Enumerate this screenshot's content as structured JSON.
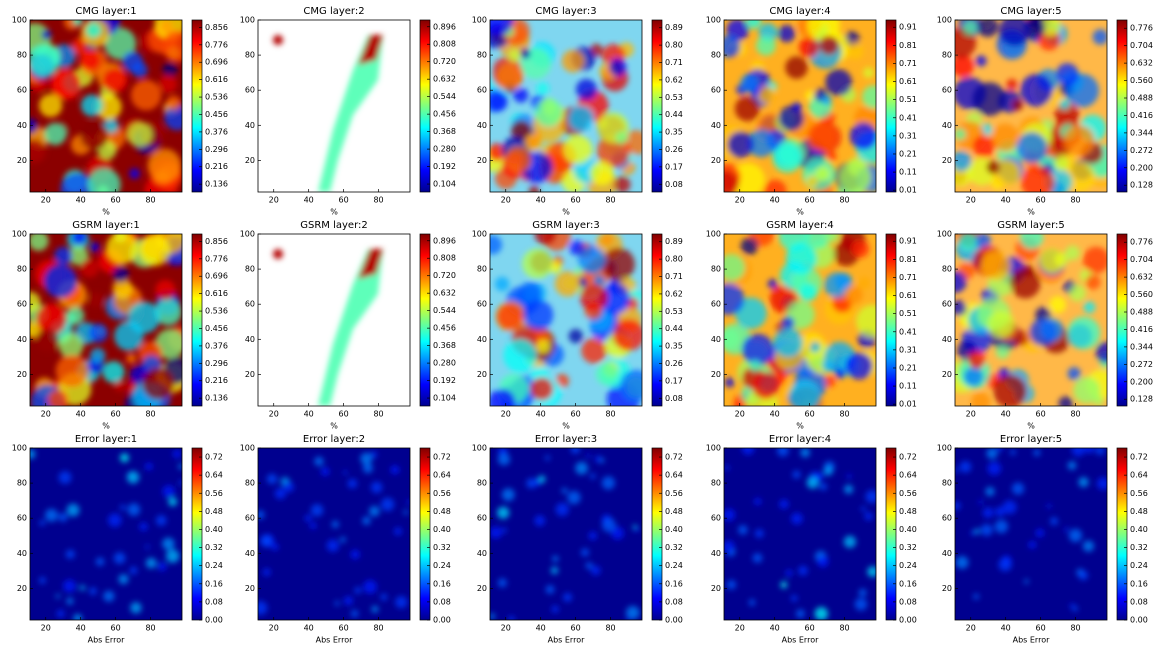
{
  "chart_data": [
    {
      "type": "heatmap",
      "title": "CMG layer:1",
      "xlabel": "%",
      "colormap": "jet",
      "background": "#8b0000",
      "xlim": [
        11,
        98
      ],
      "ylim": [
        2,
        100
      ],
      "xticks": [
        20,
        40,
        60,
        80
      ],
      "yticks": [
        20,
        40,
        60,
        80,
        100
      ],
      "clim": [
        0.1,
        0.89
      ],
      "cticks": [
        0.136,
        0.216,
        0.296,
        0.376,
        0.456,
        0.536,
        0.616,
        0.696,
        0.776,
        0.856
      ]
    },
    {
      "type": "heatmap",
      "title": "CMG layer:2",
      "xlabel": "%",
      "colormap": "jet",
      "background": "#ffffff",
      "xlim": [
        11,
        98
      ],
      "ylim": [
        2,
        100
      ],
      "xticks": [
        20,
        40,
        60,
        80
      ],
      "yticks": [
        20,
        40,
        60,
        80,
        100
      ],
      "clim": [
        0.064,
        0.93
      ],
      "cticks": [
        0.104,
        0.192,
        {
          "value": 0.28,
          "label": "0.280"
        },
        0.368,
        0.456,
        0.544,
        0.632,
        {
          "value": 0.72,
          "label": "0.720"
        },
        0.808,
        0.896
      ]
    },
    {
      "type": "heatmap",
      "title": "CMG layer:3",
      "xlabel": "%",
      "colormap": "jet",
      "background": "#7fd6f0",
      "xlim": [
        11,
        98
      ],
      "ylim": [
        2,
        100
      ],
      "xticks": [
        20,
        40,
        60,
        80
      ],
      "yticks": [
        20,
        40,
        60,
        80,
        100
      ],
      "clim": [
        0.04,
        0.93
      ],
      "cticks": [
        0.08,
        0.17,
        0.26,
        0.35,
        0.44,
        0.53,
        0.62,
        0.71,
        {
          "value": 0.8,
          "label": "0.80"
        },
        0.89
      ]
    },
    {
      "type": "heatmap",
      "title": "CMG layer:4",
      "xlabel": "%",
      "colormap": "jet",
      "background": "#ffb020",
      "xlim": [
        11,
        98
      ],
      "ylim": [
        2,
        100
      ],
      "xticks": [
        20,
        40,
        60,
        80
      ],
      "yticks": [
        20,
        40,
        60,
        80,
        100
      ],
      "clim": [
        0,
        0.95
      ],
      "cticks": [
        0.01,
        0.11,
        0.21,
        0.31,
        0.41,
        0.51,
        0.61,
        0.71,
        0.81,
        0.91
      ]
    },
    {
      "type": "heatmap",
      "title": "CMG layer:5",
      "xlabel": "%",
      "colormap": "jet",
      "background": "#ffb848",
      "xlim": [
        11,
        98
      ],
      "ylim": [
        2,
        100
      ],
      "xticks": [
        20,
        40,
        60,
        80
      ],
      "yticks": [
        20,
        40,
        60,
        80,
        100
      ],
      "clim": [
        0.1,
        0.81
      ],
      "cticks": [
        0.128,
        {
          "value": 0.2,
          "label": "0.200"
        },
        0.272,
        0.344,
        0.416,
        0.488,
        {
          "value": 0.56,
          "label": "0.560"
        },
        0.632,
        0.704,
        0.776
      ]
    },
    {
      "type": "heatmap",
      "title": "GSRM layer:1",
      "xlabel": "%",
      "colormap": "jet",
      "background": "#8b0000",
      "xlim": [
        11,
        98
      ],
      "ylim": [
        2,
        100
      ],
      "xticks": [
        20,
        40,
        60,
        80
      ],
      "yticks": [
        20,
        40,
        60,
        80,
        100
      ],
      "clim": [
        0.1,
        0.89
      ],
      "cticks": [
        0.136,
        0.216,
        0.296,
        0.376,
        0.456,
        0.536,
        0.616,
        0.696,
        0.776,
        0.856
      ]
    },
    {
      "type": "heatmap",
      "title": "GSRM layer:2",
      "xlabel": "%",
      "colormap": "jet",
      "background": "#ffffff",
      "xlim": [
        11,
        98
      ],
      "ylim": [
        2,
        100
      ],
      "xticks": [
        20,
        40,
        60,
        80
      ],
      "yticks": [
        20,
        40,
        60,
        80,
        100
      ],
      "clim": [
        0.064,
        0.93
      ],
      "cticks": [
        0.104,
        0.192,
        {
          "value": 0.28,
          "label": "0.280"
        },
        0.368,
        0.456,
        0.544,
        0.632,
        {
          "value": 0.72,
          "label": "0.720"
        },
        0.808,
        0.896
      ]
    },
    {
      "type": "heatmap",
      "title": "GSRM layer:3",
      "xlabel": "%",
      "colormap": "jet",
      "background": "#7fd6f0",
      "xlim": [
        11,
        98
      ],
      "ylim": [
        2,
        100
      ],
      "xticks": [
        20,
        40,
        60,
        80
      ],
      "yticks": [
        20,
        40,
        60,
        80,
        100
      ],
      "clim": [
        0.04,
        0.93
      ],
      "cticks": [
        0.08,
        0.17,
        0.26,
        0.35,
        0.44,
        0.53,
        0.62,
        0.71,
        {
          "value": 0.8,
          "label": "0.80"
        },
        0.89
      ]
    },
    {
      "type": "heatmap",
      "title": "GSRM layer:4",
      "xlabel": "%",
      "colormap": "jet",
      "background": "#ffb020",
      "xlim": [
        11,
        98
      ],
      "ylim": [
        2,
        100
      ],
      "xticks": [
        20,
        40,
        60,
        80
      ],
      "yticks": [
        20,
        40,
        60,
        80,
        100
      ],
      "clim": [
        0,
        0.95
      ],
      "cticks": [
        0.01,
        0.11,
        0.21,
        0.31,
        0.41,
        0.51,
        0.61,
        0.71,
        0.81,
        0.91
      ]
    },
    {
      "type": "heatmap",
      "title": "GSRM layer:5",
      "xlabel": "%",
      "colormap": "jet",
      "background": "#ffb848",
      "xlim": [
        11,
        98
      ],
      "ylim": [
        2,
        100
      ],
      "xticks": [
        20,
        40,
        60,
        80
      ],
      "yticks": [
        20,
        40,
        60,
        80,
        100
      ],
      "clim": [
        0.1,
        0.81
      ],
      "cticks": [
        0.128,
        {
          "value": 0.2,
          "label": "0.200"
        },
        0.272,
        0.344,
        0.416,
        0.488,
        {
          "value": 0.56,
          "label": "0.560"
        },
        0.632,
        0.704,
        0.776
      ]
    },
    {
      "type": "heatmap",
      "title": "Error layer:1",
      "xlabel": "Abs Error",
      "colormap": "jet",
      "background": "#00008f",
      "xlim": [
        11,
        98
      ],
      "ylim": [
        2,
        100
      ],
      "xticks": [
        20,
        40,
        60,
        80
      ],
      "yticks": [
        20,
        40,
        60,
        80,
        100
      ],
      "clim": [
        0,
        0.76
      ],
      "cticks": [
        {
          "value": 0,
          "label": "0.00"
        },
        0.08,
        0.16,
        0.24,
        0.32,
        {
          "value": 0.4,
          "label": "0.40"
        },
        0.48,
        0.56,
        0.64,
        0.72
      ]
    },
    {
      "type": "heatmap",
      "title": "Error layer:2",
      "xlabel": "Abs Error",
      "colormap": "jet",
      "background": "#00008f",
      "xlim": [
        11,
        98
      ],
      "ylim": [
        2,
        100
      ],
      "xticks": [
        20,
        40,
        60,
        80
      ],
      "yticks": [
        20,
        40,
        60,
        80,
        100
      ],
      "clim": [
        0,
        0.76
      ],
      "cticks": [
        {
          "value": 0,
          "label": "0.00"
        },
        0.08,
        0.16,
        0.24,
        0.32,
        {
          "value": 0.4,
          "label": "0.40"
        },
        0.48,
        0.56,
        0.64,
        0.72
      ]
    },
    {
      "type": "heatmap",
      "title": "Error layer:3",
      "xlabel": "Abs Error",
      "colormap": "jet",
      "background": "#00008f",
      "xlim": [
        11,
        98
      ],
      "ylim": [
        2,
        100
      ],
      "xticks": [
        20,
        40,
        60,
        80
      ],
      "yticks": [
        20,
        40,
        60,
        80,
        100
      ],
      "clim": [
        0,
        0.76
      ],
      "cticks": [
        {
          "value": 0,
          "label": "0.00"
        },
        0.08,
        0.16,
        0.24,
        0.32,
        {
          "value": 0.4,
          "label": "0.40"
        },
        0.48,
        0.56,
        0.64,
        0.72
      ]
    },
    {
      "type": "heatmap",
      "title": "Error layer:4",
      "xlabel": "Abs Error",
      "colormap": "jet",
      "background": "#00008f",
      "xlim": [
        11,
        98
      ],
      "ylim": [
        2,
        100
      ],
      "xticks": [
        20,
        40,
        60,
        80
      ],
      "yticks": [
        20,
        40,
        60,
        80,
        100
      ],
      "clim": [
        0,
        0.76
      ],
      "cticks": [
        {
          "value": 0,
          "label": "0.00"
        },
        0.08,
        0.16,
        0.24,
        0.32,
        {
          "value": 0.4,
          "label": "0.40"
        },
        0.48,
        0.56,
        0.64,
        0.72
      ]
    },
    {
      "type": "heatmap",
      "title": "Error layer:5",
      "xlabel": "Abs Error",
      "colormap": "jet",
      "background": "#00008f",
      "xlim": [
        11,
        98
      ],
      "ylim": [
        2,
        100
      ],
      "xticks": [
        20,
        40,
        60,
        80
      ],
      "yticks": [
        20,
        40,
        60,
        80,
        100
      ],
      "clim": [
        0,
        0.76
      ],
      "cticks": [
        {
          "value": 0,
          "label": "0.00"
        },
        0.08,
        0.16,
        0.24,
        0.32,
        {
          "value": 0.4,
          "label": "0.40"
        },
        0.48,
        0.56,
        0.64,
        0.72
      ]
    }
  ]
}
